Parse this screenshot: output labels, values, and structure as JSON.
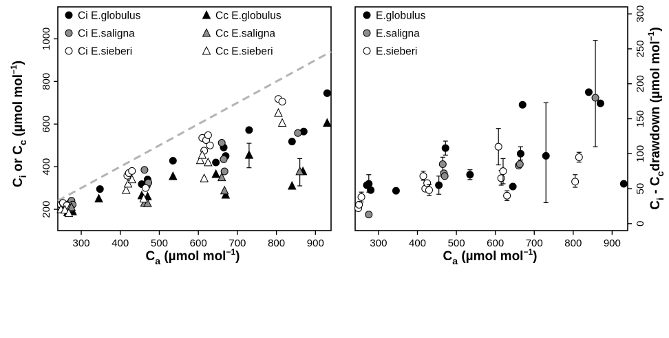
{
  "chart_data": [
    {
      "type": "scatter",
      "xlabel": "C_a (µmol mol⁻¹)",
      "xlabel_main": "C",
      "xlabel_sub": "a",
      "xlabel_unit": " (µmol mol",
      "xlabel_sup": "−1",
      "xlabel_close": ")",
      "ylabel": "C_i or C_c (µmol mol⁻¹)",
      "ylabel_parts": [
        "C",
        "i",
        " or C",
        "c",
        " (µmol mol",
        "−1",
        ")"
      ],
      "xlim": [
        240,
        940
      ],
      "ylim": [
        100,
        1150
      ],
      "xticks": [
        300,
        400,
        500,
        600,
        700,
        800,
        900
      ],
      "yticks": [
        200,
        400,
        600,
        800,
        1000
      ],
      "reference_line": {
        "style": "dashed",
        "color": "#b4b4b4",
        "slope": 1
      },
      "legend_placement": "top",
      "series": [
        {
          "name": "Ci E.globulus",
          "marker": "circle",
          "fill": "#000000",
          "points": [
            [
              268,
              225
            ],
            [
              275,
              228
            ],
            [
              348,
              295
            ],
            [
              455,
              318
            ],
            [
              470,
              340
            ],
            [
              535,
              428
            ],
            [
              645,
              420
            ],
            [
              665,
              490
            ],
            [
              670,
              450
            ],
            [
              730,
              572
            ],
            [
              840,
              518
            ],
            [
              870,
              565
            ],
            [
              930,
              745
            ]
          ]
        },
        {
          "name": "Ci E.saligna",
          "marker": "circle",
          "fill": "#8c8c8c",
          "points": [
            [
              275,
              240
            ],
            [
              278,
              222
            ],
            [
              462,
              385
            ],
            [
              468,
              310
            ],
            [
              472,
              325
            ],
            [
              660,
              512
            ],
            [
              665,
              435
            ],
            [
              667,
              378
            ],
            [
              855,
              558
            ]
          ]
        },
        {
          "name": "Ci E.sieberi",
          "marker": "circle",
          "fill": "#ffffff",
          "points": [
            [
              248,
              222
            ],
            [
              253,
              230
            ],
            [
              263,
              218
            ],
            [
              418,
              358
            ],
            [
              422,
              370
            ],
            [
              430,
              380
            ],
            [
              465,
              300
            ],
            [
              610,
              535
            ],
            [
              620,
              525
            ],
            [
              625,
              548
            ],
            [
              615,
              475
            ],
            [
              630,
              500
            ],
            [
              805,
              718
            ],
            [
              815,
              705
            ]
          ]
        },
        {
          "name": "Cc E.globulus",
          "marker": "triangle",
          "fill": "#000000",
          "points": [
            [
              265,
              186,
              null,
              null
            ],
            [
              278,
              190,
              null,
              null
            ],
            [
              345,
              250,
              null,
              null
            ],
            [
              455,
              265,
              null,
              null
            ],
            [
              470,
              260,
              null,
              null
            ],
            [
              535,
              355,
              null,
              null
            ],
            [
              645,
              365,
              null,
              null
            ],
            [
              670,
              268,
              null,
              null
            ],
            [
              730,
              455,
              395,
              510
            ],
            [
              840,
              310,
              null,
              null
            ],
            [
              868,
              378,
              null,
              null
            ],
            [
              930,
              605,
              null,
              null
            ]
          ]
        },
        {
          "name": "Cc E.saligna",
          "marker": "triangle",
          "fill": "#8c8c8c",
          "points": [
            [
              270,
              205,
              null,
              null
            ],
            [
              275,
              210,
              null,
              null
            ],
            [
              462,
              230,
              null,
              null
            ],
            [
              470,
              228,
              null,
              null
            ],
            [
              660,
              350,
              null,
              null
            ],
            [
              667,
              288,
              null,
              null
            ],
            [
              860,
              378,
              310,
              438
            ]
          ]
        },
        {
          "name": "Cc E.sieberi",
          "marker": "triangle",
          "fill": "#ffffff",
          "points": [
            [
              248,
              200,
              null,
              null
            ],
            [
              258,
              198,
              null,
              null
            ],
            [
              268,
              182,
              null,
              null
            ],
            [
              415,
              290,
              null,
              null
            ],
            [
              420,
              320,
              null,
              null
            ],
            [
              430,
              340,
              null,
              null
            ],
            [
              460,
              250,
              null,
              null
            ],
            [
              605,
              430,
              null,
              null
            ],
            [
              610,
              455,
              null,
              null
            ],
            [
              615,
              345,
              null,
              null
            ],
            [
              625,
              420,
              null,
              null
            ],
            [
              805,
              652,
              null,
              null
            ],
            [
              815,
              605,
              null,
              null
            ]
          ]
        }
      ]
    },
    {
      "type": "scatter",
      "xlabel": "C_a (µmol mol⁻¹)",
      "xlabel_main": "C",
      "xlabel_sub": "a",
      "xlabel_unit": " (µmol mol",
      "xlabel_sup": "−1",
      "xlabel_close": ")",
      "ylabel": "C_i - C_c drawdown (µmol mol⁻¹)",
      "ylabel_parts": [
        "C",
        "i",
        " - C",
        "c",
        "drawdown (µmol mol",
        "−1",
        ")"
      ],
      "xlim": [
        240,
        940
      ],
      "ylim": [
        -10,
        310
      ],
      "xticks": [
        300,
        400,
        500,
        600,
        700,
        800,
        900
      ],
      "yticks": [
        0,
        50,
        100,
        150,
        200,
        250,
        300
      ],
      "legend_placement": "top-left",
      "series": [
        {
          "name": "E.globulus",
          "marker": "circle",
          "fill": "#000000",
          "points": [
            [
              270,
              55,
              null,
              null
            ],
            [
              275,
              57,
              45,
              70
            ],
            [
              280,
              48,
              null,
              null
            ],
            [
              345,
              47,
              null,
              null
            ],
            [
              455,
              55,
              42,
              68
            ],
            [
              472,
              108,
              98,
              118
            ],
            [
              535,
              70,
              63,
              77
            ],
            [
              645,
              53,
              null,
              null
            ],
            [
              665,
              100,
              91,
              110
            ],
            [
              670,
              170,
              null,
              null
            ],
            [
              730,
              97,
              30,
              173
            ],
            [
              840,
              188,
              null,
              null
            ],
            [
              870,
              172,
              null,
              null
            ],
            [
              930,
              57,
              null,
              null
            ]
          ]
        },
        {
          "name": "E.saligna",
          "marker": "circle",
          "fill": "#8c8c8c",
          "points": [
            [
              275,
              13,
              null,
              null
            ],
            [
              465,
              85,
              75,
              95
            ],
            [
              468,
              72,
              null,
              null
            ],
            [
              470,
              68,
              null,
              null
            ],
            [
              660,
              83,
              null,
              null
            ],
            [
              663,
              85,
              null,
              null
            ],
            [
              857,
              180,
              110,
              262
            ]
          ]
        },
        {
          "name": "E.sieberi",
          "marker": "circle",
          "fill": "#ffffff",
          "points": [
            [
              248,
              22,
              null,
              null
            ],
            [
              250,
              27,
              null,
              null
            ],
            [
              256,
              38,
              31,
              45
            ],
            [
              415,
              68,
              62,
              75
            ],
            [
              420,
              50,
              null,
              null
            ],
            [
              425,
              58,
              null,
              null
            ],
            [
              430,
              48,
              40,
              56
            ],
            [
              608,
              110,
              84,
              136
            ],
            [
              615,
              65,
              55,
              76
            ],
            [
              620,
              75,
              57,
              93
            ],
            [
              630,
              40,
              33,
              47
            ],
            [
              805,
              60,
              52,
              70
            ],
            [
              815,
              95,
              88,
              102
            ]
          ]
        }
      ]
    }
  ]
}
